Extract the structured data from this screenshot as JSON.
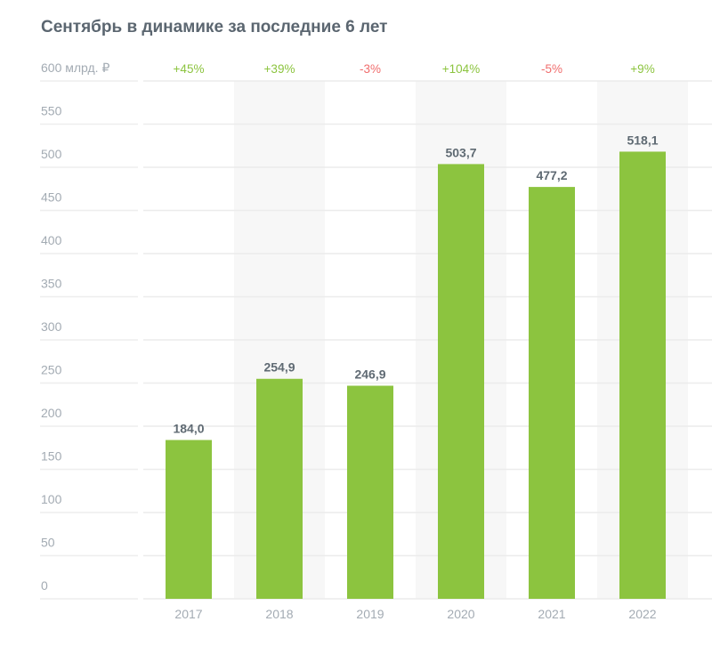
{
  "chart_data": {
    "type": "bar",
    "title": "Сентябрь в динамике за последние 6 лет",
    "ylabel": "млрд. ₽",
    "ylim": [
      0,
      600
    ],
    "yticks": [
      "0",
      "50",
      "100",
      "150",
      "200",
      "250",
      "300",
      "350",
      "400",
      "450",
      "500",
      "550",
      "600 млрд. ₽"
    ],
    "yticks_values": [
      0,
      50,
      100,
      150,
      200,
      250,
      300,
      350,
      400,
      450,
      500,
      550,
      600
    ],
    "categories": [
      "2017",
      "2018",
      "2019",
      "2020",
      "2021",
      "2022"
    ],
    "values": [
      184.0,
      254.9,
      246.9,
      503.7,
      477.2,
      518.1
    ],
    "value_labels": [
      "184,0",
      "254,9",
      "246,9",
      "503,7",
      "477,2",
      "518,1"
    ],
    "changes": [
      "+45%",
      "+39%",
      "-3%",
      "+104%",
      "-5%",
      "+9%"
    ],
    "grid": true,
    "colors": {
      "bar": "#8cc43f",
      "positive": "#8cc43f",
      "negative": "#f06d6d",
      "shade": "#f7f7f7"
    }
  }
}
